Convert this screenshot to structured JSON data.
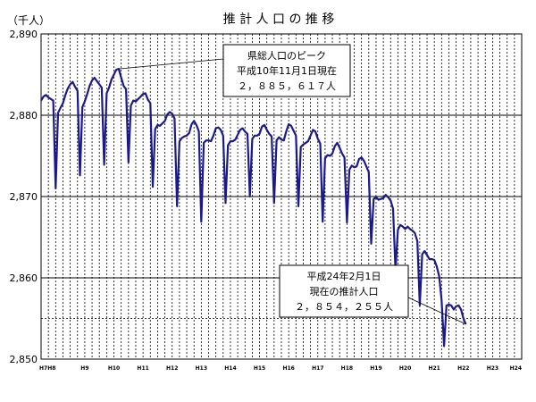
{
  "chart_data": {
    "type": "line",
    "title": "推 計 人 口 の 推 移",
    "unit_label": "（千人）",
    "ylim": [
      2850,
      2890
    ],
    "yticks": [
      2850,
      2860,
      2870,
      2880,
      2890
    ],
    "ytick_labels": [
      "2,850",
      "2,860",
      "2,870",
      "2,880",
      "2,890"
    ],
    "xlabels": [
      {
        "text": "H7H8",
        "month": 0
      },
      {
        "text": "H9",
        "month": 18
      },
      {
        "text": "H10",
        "month": 30
      },
      {
        "text": "H11",
        "month": 42
      },
      {
        "text": "H12",
        "month": 54
      },
      {
        "text": "H13",
        "month": 66
      },
      {
        "text": "H14",
        "month": 78
      },
      {
        "text": "H15",
        "month": 90
      },
      {
        "text": "H16",
        "month": 102
      },
      {
        "text": "H17",
        "month": 114
      },
      {
        "text": "H18",
        "month": 126
      },
      {
        "text": "H19",
        "month": 138
      },
      {
        "text": "H20",
        "month": 150
      },
      {
        "text": "H21",
        "month": 162
      },
      {
        "text": "H22",
        "month": 174
      },
      {
        "text": "H23",
        "month": 186
      },
      {
        "text": "H24",
        "month": 198
      }
    ],
    "grid": true,
    "series": [
      {
        "color": "#1a1a8c",
        "points": [
          [
            0,
            2881.8
          ],
          [
            1,
            2882.3
          ],
          [
            2,
            2882.5
          ],
          [
            3,
            2882.2
          ],
          [
            4,
            2882.0
          ],
          [
            5,
            2881.8
          ],
          [
            6,
            2871.0
          ],
          [
            7,
            2880.3
          ],
          [
            8,
            2880.9
          ],
          [
            9,
            2881.5
          ],
          [
            10,
            2882.5
          ],
          [
            11,
            2883.3
          ],
          [
            12,
            2883.8
          ],
          [
            13,
            2884.1
          ],
          [
            14,
            2883.5
          ],
          [
            15,
            2883.0
          ],
          [
            16,
            2872.6
          ],
          [
            17,
            2881.0
          ],
          [
            18,
            2881.7
          ],
          [
            19,
            2882.6
          ],
          [
            20,
            2883.6
          ],
          [
            21,
            2884.3
          ],
          [
            22,
            2884.6
          ],
          [
            23,
            2884.2
          ],
          [
            24,
            2883.8
          ],
          [
            25,
            2883.4
          ],
          [
            26,
            2873.9
          ],
          [
            27,
            2882.7
          ],
          [
            28,
            2883.4
          ],
          [
            29,
            2884.4
          ],
          [
            30,
            2885.0
          ],
          [
            31,
            2885.6
          ],
          [
            32,
            2885.7
          ],
          [
            33,
            2884.6
          ],
          [
            34,
            2883.6
          ],
          [
            35,
            2883.2
          ],
          [
            36,
            2874.2
          ],
          [
            37,
            2881.2
          ],
          [
            38,
            2881.8
          ],
          [
            39,
            2881.7
          ],
          [
            40,
            2882.0
          ],
          [
            41,
            2882.3
          ],
          [
            42,
            2882.6
          ],
          [
            43,
            2882.7
          ],
          [
            44,
            2881.9
          ],
          [
            45,
            2881.5
          ],
          [
            46,
            2871.2
          ],
          [
            47,
            2878.3
          ],
          [
            48,
            2878.8
          ],
          [
            49,
            2878.7
          ],
          [
            50,
            2879.0
          ],
          [
            51,
            2879.3
          ],
          [
            52,
            2880.1
          ],
          [
            53,
            2880.4
          ],
          [
            54,
            2880.2
          ],
          [
            55,
            2879.6
          ],
          [
            56,
            2868.8
          ],
          [
            57,
            2876.8
          ],
          [
            58,
            2877.2
          ],
          [
            59,
            2877.4
          ],
          [
            60,
            2877.5
          ],
          [
            61,
            2877.8
          ],
          [
            62,
            2878.9
          ],
          [
            63,
            2879.3
          ],
          [
            64,
            2878.8
          ],
          [
            65,
            2878.0
          ],
          [
            66,
            2866.9
          ],
          [
            67,
            2876.6
          ],
          [
            68,
            2876.9
          ],
          [
            69,
            2876.9
          ],
          [
            70,
            2876.8
          ],
          [
            71,
            2877.5
          ],
          [
            72,
            2878.4
          ],
          [
            73,
            2878.5
          ],
          [
            74,
            2878.2
          ],
          [
            75,
            2877.5
          ],
          [
            76,
            2869.2
          ],
          [
            77,
            2876.3
          ],
          [
            78,
            2876.8
          ],
          [
            79,
            2876.8
          ],
          [
            80,
            2877.0
          ],
          [
            81,
            2877.6
          ],
          [
            82,
            2878.2
          ],
          [
            83,
            2878.4
          ],
          [
            84,
            2878.0
          ],
          [
            85,
            2877.7
          ],
          [
            86,
            2870.0
          ],
          [
            87,
            2877.1
          ],
          [
            88,
            2877.5
          ],
          [
            89,
            2877.5
          ],
          [
            90,
            2877.7
          ],
          [
            91,
            2878.6
          ],
          [
            92,
            2878.8
          ],
          [
            93,
            2878.2
          ],
          [
            94,
            2877.7
          ],
          [
            95,
            2877.4
          ],
          [
            96,
            2869.2
          ],
          [
            97,
            2876.9
          ],
          [
            98,
            2877.3
          ],
          [
            99,
            2877.0
          ],
          [
            100,
            2876.9
          ],
          [
            101,
            2878.0
          ],
          [
            102,
            2878.9
          ],
          [
            103,
            2878.7
          ],
          [
            104,
            2878.1
          ],
          [
            105,
            2877.5
          ],
          [
            106,
            2868.8
          ],
          [
            107,
            2876.1
          ],
          [
            108,
            2876.4
          ],
          [
            109,
            2876.6
          ],
          [
            110,
            2876.8
          ],
          [
            111,
            2877.5
          ],
          [
            112,
            2878.2
          ],
          [
            113,
            2878.0
          ],
          [
            114,
            2877.1
          ],
          [
            115,
            2876.5
          ],
          [
            116,
            2866.9
          ],
          [
            117,
            2874.7
          ],
          [
            118,
            2875.1
          ],
          [
            119,
            2875.0
          ],
          [
            120,
            2875.3
          ],
          [
            121,
            2876.2
          ],
          [
            122,
            2876.6
          ],
          [
            123,
            2876.0
          ],
          [
            124,
            2875.3
          ],
          [
            125,
            2874.8
          ],
          [
            126,
            2866.8
          ],
          [
            127,
            2873.3
          ],
          [
            128,
            2873.8
          ],
          [
            129,
            2873.6
          ],
          [
            130,
            2873.7
          ],
          [
            131,
            2874.6
          ],
          [
            132,
            2874.8
          ],
          [
            133,
            2874.4
          ],
          [
            134,
            2873.7
          ],
          [
            135,
            2873.0
          ],
          [
            136,
            2864.2
          ],
          [
            137,
            2869.7
          ],
          [
            138,
            2869.9
          ],
          [
            139,
            2869.6
          ],
          [
            140,
            2869.7
          ],
          [
            141,
            2869.8
          ],
          [
            142,
            2870.2
          ],
          [
            143,
            2869.9
          ],
          [
            144,
            2869.5
          ],
          [
            145,
            2868.5
          ],
          [
            146,
            2860.9
          ],
          [
            147,
            2865.9
          ],
          [
            148,
            2866.5
          ],
          [
            149,
            2866.3
          ],
          [
            150,
            2866.0
          ],
          [
            151,
            2866.3
          ],
          [
            152,
            2866.0
          ],
          [
            153,
            2865.8
          ],
          [
            154,
            2865.5
          ],
          [
            155,
            2864.5
          ],
          [
            156,
            2856.6
          ],
          [
            157,
            2862.9
          ],
          [
            158,
            2863.3
          ],
          [
            159,
            2862.8
          ],
          [
            160,
            2862.3
          ],
          [
            161,
            2862.3
          ],
          [
            162,
            2862.2
          ],
          [
            163,
            2861.4
          ],
          [
            164,
            2860.2
          ],
          [
            165,
            2857.3
          ],
          [
            166,
            2851.6
          ],
          [
            167,
            2856.6
          ],
          [
            168,
            2856.7
          ],
          [
            169,
            2856.6
          ],
          [
            170,
            2856.1
          ],
          [
            171,
            2856.5
          ],
          [
            172,
            2856.6
          ],
          [
            173,
            2856.1
          ],
          [
            174,
            2855.0
          ],
          [
            175,
            2854.3
          ]
        ]
      }
    ],
    "annotations": [
      {
        "lines": [
          "県総人口のピーク",
          "平成10年11月1日現在",
          "２，８８５，６１７人"
        ],
        "target": [
          32,
          2885.7
        ]
      },
      {
        "lines": [
          "平成24年2月1日",
          "現在の推計人口",
          "２，８５４，２５５人"
        ],
        "target": [
          175,
          2854.3
        ]
      }
    ]
  }
}
